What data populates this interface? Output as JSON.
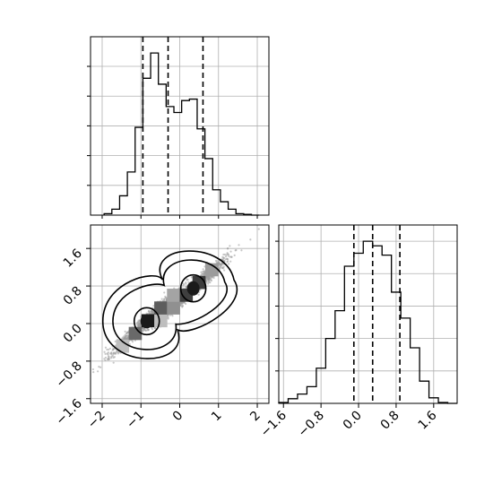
{
  "chart_data": [
    {
      "type": "histogram",
      "panel": "top-left",
      "xlim": [
        -2.3,
        2.3
      ],
      "xticks": [
        -2,
        -1,
        0,
        1,
        2
      ],
      "bins": [
        -1.95,
        -1.75,
        -1.55,
        -1.35,
        -1.15,
        -0.95,
        -0.75,
        -0.55,
        -0.35,
        -0.15,
        0.05,
        0.25,
        0.45,
        0.65,
        0.85,
        1.05,
        1.25,
        1.45,
        1.65,
        1.85,
        2.05
      ],
      "counts": [
        1,
        4,
        13,
        29,
        59,
        92,
        109,
        88,
        73,
        69,
        77,
        78,
        58,
        38,
        17,
        9,
        4,
        1,
        0.5,
        0
      ],
      "quantiles": [
        -0.95,
        -0.3,
        0.6
      ],
      "grid": true
    },
    {
      "type": "heatmap",
      "panel": "bottom-left",
      "subtype": "2d-histogram-contour-scatter",
      "xlim": [
        -2.3,
        2.3
      ],
      "ylim": [
        -1.7,
        2.1
      ],
      "xticks": [
        -2,
        -1,
        0,
        1,
        2
      ],
      "yticks": [
        -1.6,
        -0.8,
        0.0,
        0.8,
        1.6
      ],
      "xtick_labels": [
        "−2",
        "−1",
        "0",
        "1",
        "2"
      ],
      "ytick_labels": [
        "−1.6",
        "−0.8",
        "0.0",
        "0.8",
        "1.6"
      ],
      "modes": [
        {
          "x": -0.85,
          "y": 0.05
        },
        {
          "x": 0.35,
          "y": 0.75
        }
      ],
      "grid": true
    },
    {
      "type": "histogram",
      "panel": "bottom-right",
      "xlim": [
        -1.7,
        2.1
      ],
      "xticks": [
        -1.6,
        -0.8,
        0.0,
        0.8,
        1.6
      ],
      "xtick_labels": [
        "−1.6",
        "−0.8",
        "0.0",
        "0.8",
        "1.6"
      ],
      "bins": [
        -1.7,
        -1.5,
        -1.3,
        -1.1,
        -0.9,
        -0.7,
        -0.5,
        -0.3,
        -0.1,
        0.1,
        0.3,
        0.5,
        0.7,
        0.9,
        1.1,
        1.3,
        1.5,
        1.7,
        1.9,
        2.1
      ],
      "counts": [
        1,
        5,
        10,
        18,
        38,
        70,
        100,
        148,
        162,
        175,
        170,
        160,
        120,
        92,
        60,
        24,
        6,
        1,
        0
      ],
      "quantiles": [
        -0.1,
        0.3,
        0.88
      ],
      "grid": true
    }
  ]
}
